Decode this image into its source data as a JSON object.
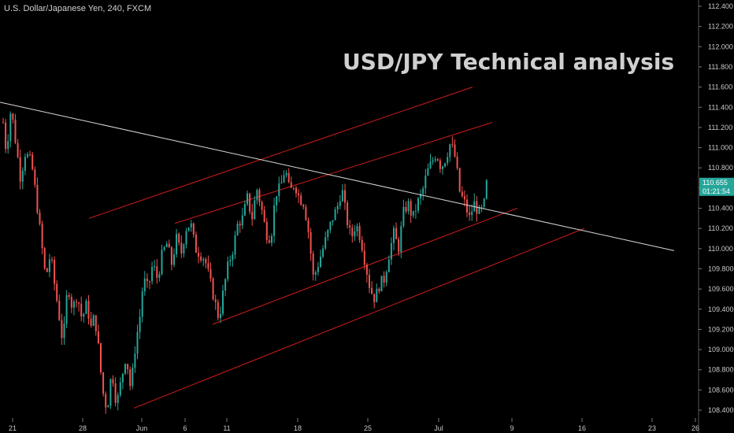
{
  "header": {
    "symbol": "U.S. Dollar/Japanese Yen, 240, FXCM",
    "headline": "USD/JPY Technical analysis"
  },
  "price_badge": {
    "price": "110.655",
    "countdown": "01:21:54",
    "color": "#26a69a"
  },
  "colors": {
    "background": "#000000",
    "up": "#26a69a",
    "down": "#ef5350",
    "channel": "#d01c1c",
    "trendline": "#d9d9d9",
    "axis": "#555555"
  },
  "chart_data": {
    "type": "candlestick",
    "title": "USD/JPY Technical analysis",
    "ylim": [
      108.3,
      112.5
    ],
    "y_ticks": [
      "112.400",
      "112.200",
      "112.000",
      "111.800",
      "111.600",
      "111.400",
      "111.200",
      "111.000",
      "110.800",
      "110.600",
      "110.400",
      "110.200",
      "110.000",
      "109.800",
      "109.600",
      "109.400",
      "109.200",
      "109.000",
      "108.800",
      "108.600",
      "108.400"
    ],
    "x_ticks": [
      "21",
      "28",
      "Jun",
      "6",
      "11",
      "18",
      "25",
      "Jul",
      "9",
      "16",
      "23",
      "26"
    ],
    "grid": false,
    "last_price": 110.655,
    "path": [
      [
        0,
        110.9
      ],
      [
        4,
        111.25
      ],
      [
        8,
        110.95
      ],
      [
        14,
        111.4
      ],
      [
        20,
        111.05
      ],
      [
        26,
        110.7
      ],
      [
        32,
        110.95
      ],
      [
        40,
        110.85
      ],
      [
        46,
        110.5
      ],
      [
        52,
        110.1
      ],
      [
        58,
        109.7
      ],
      [
        64,
        109.95
      ],
      [
        70,
        109.6
      ],
      [
        74,
        109.4
      ],
      [
        80,
        109.05
      ],
      [
        86,
        109.65
      ],
      [
        92,
        109.4
      ],
      [
        98,
        109.55
      ],
      [
        104,
        109.3
      ],
      [
        110,
        109.45
      ],
      [
        116,
        109.2
      ],
      [
        120,
        109.35
      ],
      [
        126,
        108.95
      ],
      [
        130,
        108.6
      ],
      [
        136,
        108.4
      ],
      [
        142,
        108.8
      ],
      [
        148,
        108.45
      ],
      [
        154,
        108.7
      ],
      [
        160,
        108.95
      ],
      [
        166,
        108.6
      ],
      [
        172,
        109.05
      ],
      [
        178,
        109.35
      ],
      [
        182,
        109.7
      ],
      [
        188,
        109.6
      ],
      [
        194,
        109.85
      ],
      [
        200,
        109.7
      ],
      [
        206,
        109.95
      ],
      [
        212,
        110.05
      ],
      [
        218,
        109.85
      ],
      [
        224,
        110.1
      ],
      [
        230,
        109.95
      ],
      [
        236,
        110.2
      ],
      [
        242,
        110.25
      ],
      [
        248,
        110.0
      ],
      [
        254,
        109.95
      ],
      [
        260,
        109.9
      ],
      [
        266,
        109.7
      ],
      [
        272,
        109.5
      ],
      [
        278,
        109.3
      ],
      [
        284,
        109.6
      ],
      [
        290,
        109.85
      ],
      [
        296,
        110.0
      ],
      [
        302,
        110.25
      ],
      [
        308,
        110.3
      ],
      [
        314,
        110.5
      ],
      [
        320,
        110.3
      ],
      [
        326,
        110.6
      ],
      [
        332,
        110.4
      ],
      [
        338,
        110.15
      ],
      [
        344,
        110.1
      ],
      [
        350,
        110.55
      ],
      [
        356,
        110.6
      ],
      [
        362,
        110.8
      ],
      [
        368,
        110.55
      ],
      [
        374,
        110.65
      ],
      [
        380,
        110.5
      ],
      [
        386,
        110.45
      ],
      [
        392,
        110.15
      ],
      [
        398,
        109.7
      ],
      [
        404,
        109.85
      ],
      [
        410,
        110.0
      ],
      [
        416,
        110.15
      ],
      [
        422,
        110.3
      ],
      [
        428,
        110.4
      ],
      [
        434,
        110.6
      ],
      [
        440,
        110.3
      ],
      [
        446,
        110.1
      ],
      [
        452,
        110.25
      ],
      [
        458,
        110.1
      ],
      [
        464,
        109.85
      ],
      [
        470,
        109.6
      ],
      [
        476,
        109.5
      ],
      [
        482,
        109.65
      ],
      [
        488,
        109.7
      ],
      [
        494,
        109.95
      ],
      [
        500,
        110.15
      ],
      [
        506,
        110.0
      ],
      [
        512,
        110.35
      ],
      [
        518,
        110.45
      ],
      [
        524,
        110.3
      ],
      [
        530,
        110.45
      ],
      [
        536,
        110.55
      ],
      [
        542,
        110.75
      ],
      [
        548,
        110.85
      ],
      [
        554,
        110.95
      ],
      [
        560,
        110.8
      ],
      [
        566,
        110.9
      ],
      [
        572,
        111.05
      ],
      [
        578,
        110.9
      ],
      [
        584,
        110.55
      ],
      [
        590,
        110.45
      ],
      [
        596,
        110.3
      ],
      [
        602,
        110.45
      ],
      [
        608,
        110.35
      ],
      [
        614,
        110.4
      ],
      [
        618,
        110.655
      ]
    ],
    "trendline": [
      [
        0,
        111.45
      ],
      [
        856,
        109.98
      ]
    ],
    "channels": [
      [
        [
          113,
          110.3
        ],
        [
          600,
          111.6
        ]
      ],
      [
        [
          222,
          110.25
        ],
        [
          625,
          111.25
        ]
      ],
      [
        [
          270,
          109.25
        ],
        [
          657,
          110.4
        ]
      ],
      [
        [
          170,
          108.42
        ],
        [
          742,
          110.2
        ]
      ]
    ]
  }
}
